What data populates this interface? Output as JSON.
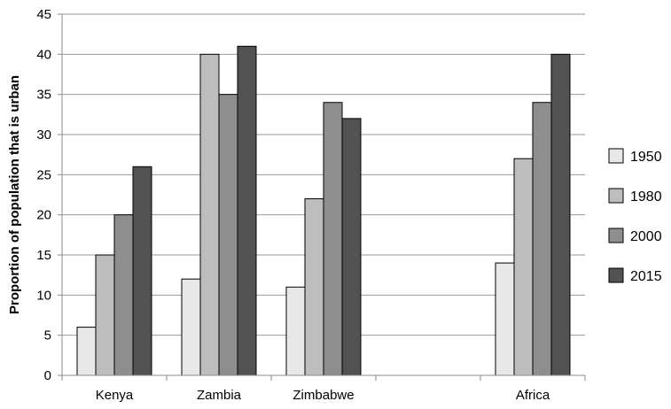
{
  "chart_data": {
    "type": "bar",
    "title": "",
    "xlabel": "",
    "ylabel": "Proportion of population that is urban",
    "ylim": [
      0,
      45
    ],
    "yticks": [
      0,
      5,
      10,
      15,
      20,
      25,
      30,
      35,
      40,
      45
    ],
    "categories": [
      "Kenya",
      "Zambia",
      "Zimbabwe",
      "",
      "Africa"
    ],
    "grid": true,
    "legend_position": "right",
    "series": [
      {
        "name": "1950",
        "color": "#E8E8E8",
        "values": [
          6,
          12,
          11,
          null,
          14
        ]
      },
      {
        "name": "1980",
        "color": "#BDBDBD",
        "values": [
          15,
          40,
          22,
          null,
          27
        ]
      },
      {
        "name": "2000",
        "color": "#8E8E8E",
        "values": [
          20,
          35,
          34,
          null,
          34
        ]
      },
      {
        "name": "2015",
        "color": "#525252",
        "values": [
          26,
          41,
          32,
          null,
          40
        ]
      }
    ]
  }
}
